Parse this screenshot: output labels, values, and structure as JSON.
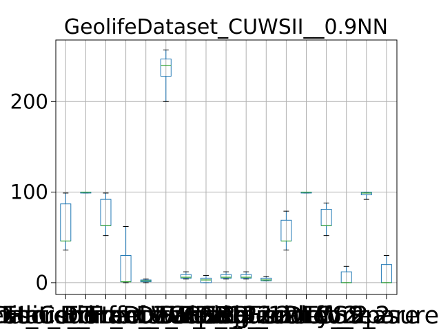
{
  "chart_data": {
    "type": "box",
    "title": "GeolifeDataset_CUWSII__0.9NN",
    "xlabel": "",
    "ylabel": "",
    "ylim": [
      -13,
      268
    ],
    "yticks": [
      0,
      100,
      200
    ],
    "grid": true,
    "legend": "none",
    "colors": {
      "box": "#1f77b4",
      "median": "#2ca02c",
      "whisker": "#1f77b4",
      "cap": "#000000"
    },
    "categories": [
      "Hausdorff",
      "Discret_Frechet",
      "Dynamic_Time_Warping",
      "Longest_Common_Subsequence",
      "Edit_Distance",
      "Edit_Distance_Real_Penalty",
      "DTW_12",
      "LCSS_12",
      "EDR_12",
      "ERP_12",
      "jp_12",
      "Hausdorff_2",
      "Frechet_2",
      "DTW_2",
      "LCSS_2",
      "compare",
      "measure"
    ],
    "boxes": [
      {
        "whislo": 36,
        "q1": 46,
        "med": 46,
        "q3": 87,
        "whishi": 99
      },
      {
        "whislo": 99,
        "q1": 99,
        "med": 100,
        "q3": 100,
        "whishi": 100
      },
      {
        "whislo": 52,
        "q1": 63,
        "med": 63,
        "q3": 92,
        "whishi": 99
      },
      {
        "whislo": 0,
        "q1": 1,
        "med": 1,
        "q3": 30,
        "whishi": 62
      },
      {
        "whislo": 0,
        "q1": 1,
        "med": 2,
        "q3": 3,
        "whishi": 4
      },
      {
        "whislo": 200,
        "q1": 228,
        "med": 240,
        "q3": 247,
        "whishi": 257
      },
      {
        "whislo": 4,
        "q1": 5,
        "med": 6,
        "q3": 9,
        "whishi": 12
      },
      {
        "whislo": 0,
        "q1": 0,
        "med": 3,
        "q3": 5,
        "whishi": 8
      },
      {
        "whislo": 4,
        "q1": 5,
        "med": 6,
        "q3": 9,
        "whishi": 12
      },
      {
        "whislo": 4,
        "q1": 5,
        "med": 6,
        "q3": 9,
        "whishi": 12
      },
      {
        "whislo": 2,
        "q1": 2,
        "med": 3,
        "q3": 5,
        "whishi": 7
      },
      {
        "whislo": 36,
        "q1": 46,
        "med": 46,
        "q3": 69,
        "whishi": 79
      },
      {
        "whislo": 99,
        "q1": 99,
        "med": 100,
        "q3": 100,
        "whishi": 100
      },
      {
        "whislo": 52,
        "q1": 63,
        "med": 63,
        "q3": 81,
        "whishi": 88
      },
      {
        "whislo": 0,
        "q1": 0,
        "med": 0,
        "q3": 12,
        "whishi": 18
      },
      {
        "whislo": 92,
        "q1": 97,
        "med": 99,
        "q3": 100,
        "whishi": 100
      },
      {
        "whislo": 0,
        "q1": 0,
        "med": 0,
        "q3": 20,
        "whishi": 30
      }
    ]
  }
}
